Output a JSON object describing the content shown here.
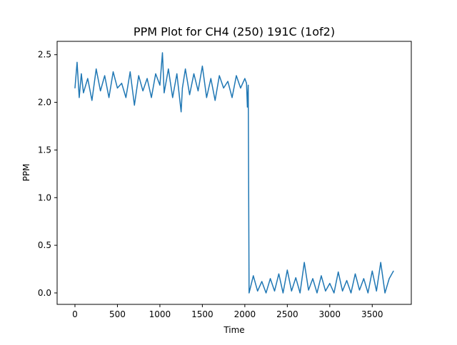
{
  "chart_data": {
    "type": "line",
    "title": "PPM Plot for CH4 (250) 191C (1of2)",
    "xlabel": "Time",
    "ylabel": "PPM",
    "xlim": [
      -210,
      3960
    ],
    "ylim": [
      -0.12,
      2.64
    ],
    "xticks": [
      0,
      500,
      1000,
      1500,
      2000,
      2500,
      3000,
      3500
    ],
    "xtick_labels": [
      "0",
      "500",
      "1000",
      "1500",
      "2000",
      "2500",
      "3000",
      "3500"
    ],
    "yticks": [
      0.0,
      0.5,
      1.0,
      1.5,
      2.0,
      2.5
    ],
    "ytick_labels": [
      "0.0",
      "0.5",
      "1.0",
      "1.5",
      "2.0",
      "2.5"
    ],
    "grid": false,
    "legend": "none",
    "series": [
      {
        "color": "#1f77b4",
        "x": [
          0,
          25,
          50,
          75,
          100,
          150,
          200,
          250,
          300,
          350,
          400,
          450,
          500,
          550,
          600,
          650,
          700,
          750,
          800,
          850,
          900,
          950,
          1000,
          1030,
          1050,
          1100,
          1150,
          1200,
          1250,
          1265,
          1300,
          1350,
          1400,
          1450,
          1500,
          1550,
          1600,
          1650,
          1700,
          1750,
          1800,
          1850,
          1900,
          1950,
          2000,
          2020,
          2030,
          2040,
          2050,
          2100,
          2150,
          2200,
          2250,
          2300,
          2350,
          2400,
          2450,
          2500,
          2550,
          2600,
          2650,
          2700,
          2750,
          2800,
          2850,
          2900,
          2950,
          3000,
          3050,
          3100,
          3150,
          3200,
          3250,
          3300,
          3350,
          3400,
          3450,
          3500,
          3550,
          3600,
          3650,
          3700,
          3750
        ],
        "y": [
          2.15,
          2.42,
          2.05,
          2.3,
          2.1,
          2.25,
          2.02,
          2.35,
          2.12,
          2.28,
          2.05,
          2.32,
          2.15,
          2.2,
          2.05,
          2.32,
          1.97,
          2.28,
          2.12,
          2.25,
          2.05,
          2.3,
          2.18,
          2.52,
          2.1,
          2.35,
          2.05,
          2.3,
          1.9,
          2.15,
          2.35,
          2.08,
          2.3,
          2.12,
          2.38,
          2.05,
          2.25,
          2.02,
          2.28,
          2.15,
          2.22,
          2.05,
          2.28,
          2.15,
          2.25,
          2.2,
          1.95,
          2.18,
          0.0,
          0.18,
          0.02,
          0.12,
          0.0,
          0.15,
          0.02,
          0.2,
          0.0,
          0.24,
          0.02,
          0.16,
          0.0,
          0.32,
          0.03,
          0.15,
          0.0,
          0.18,
          0.02,
          0.1,
          0.0,
          0.22,
          0.02,
          0.13,
          0.0,
          0.2,
          0.03,
          0.15,
          0.0,
          0.23,
          0.02,
          0.32,
          0.0,
          0.15,
          0.23
        ]
      }
    ]
  }
}
